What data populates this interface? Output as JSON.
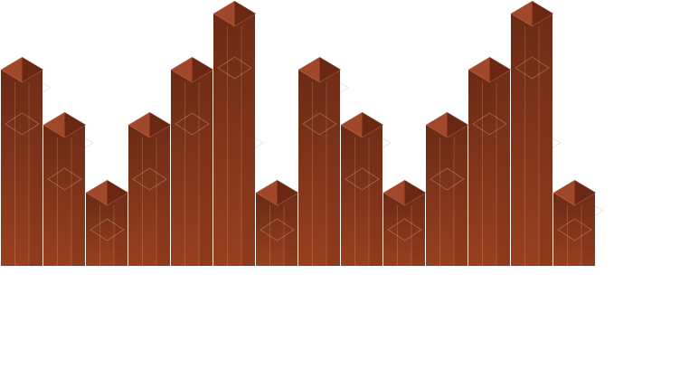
{
  "graphic": {
    "name": "isometric-bar-skyline",
    "colors": {
      "background": "#ffffff",
      "body_top": "#6b2a15",
      "body_bottom": "#98401f",
      "cap_light": "#a2482a",
      "cap_dark": "#6a2814",
      "right_face": "#7d3019",
      "outline": "#e9c6b2"
    },
    "front_levels": [
      3,
      2,
      1,
      2,
      3,
      4,
      1,
      3,
      2,
      1,
      2,
      3,
      4,
      1
    ],
    "back_levels": [
      3,
      2,
      1,
      2,
      3,
      2,
      1,
      3,
      2,
      1,
      1,
      2,
      2,
      1
    ]
  }
}
